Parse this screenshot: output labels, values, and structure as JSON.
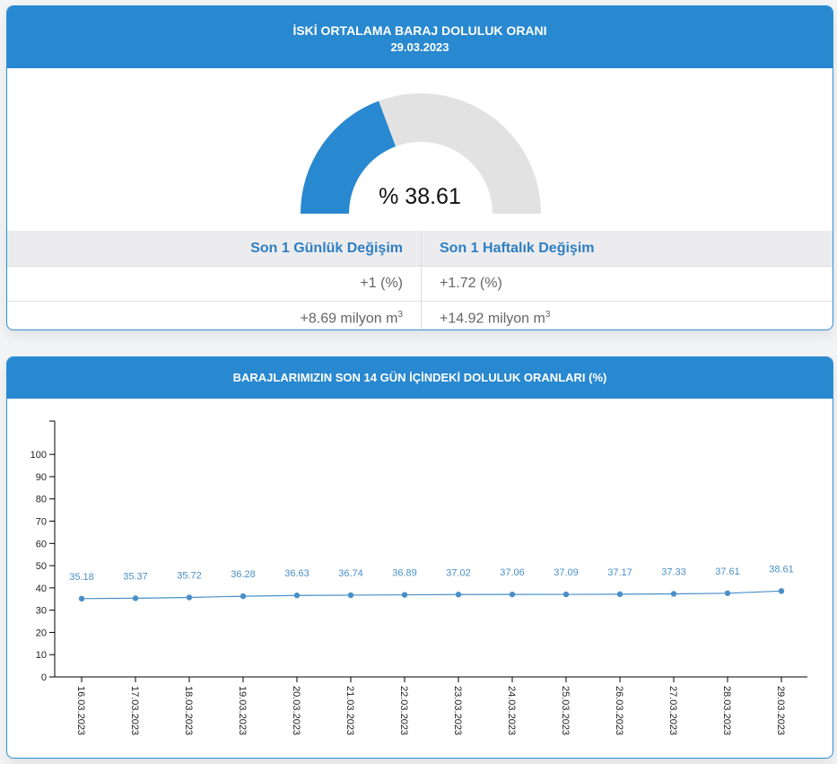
{
  "panel1": {
    "title": "İSKİ ORTALAMA BARAJ DOLULUK ORANI",
    "date": "29.03.2023",
    "gauge": {
      "value_label": "% 38.61",
      "fill_fraction": 0.3861,
      "fill_color": "#2888d0",
      "track_color": "#e2e2e2"
    },
    "table": {
      "headers": [
        "Son 1 Günlük Değişim",
        "Son 1 Haftalık Değişim"
      ],
      "rows": [
        [
          "+1 (%)",
          "+1.72 (%)"
        ],
        [
          "+8.69 milyon m",
          "+14.92 milyon m"
        ]
      ],
      "unit_superscript": "3"
    }
  },
  "panel2": {
    "title": "BARAJLARIMIZIN SON 14 GÜN İÇİNDEKİ DOLULUK ORANLARI (%)"
  },
  "chart_data": {
    "type": "line",
    "title": "BARAJLARIMIZIN SON 14 GÜN İÇİNDEKİ DOLULUK ORANLARI (%)",
    "categories": [
      "16.03.2023",
      "17.03.2023",
      "18.03.2023",
      "19.03.2023",
      "20.03.2023",
      "21.03.2023",
      "22.03.2023",
      "23.03.2023",
      "24.03.2023",
      "25.03.2023",
      "26.03.2023",
      "27.03.2023",
      "28.03.2023",
      "29.03.2023"
    ],
    "series": [
      {
        "values": [
          35.18,
          35.37,
          35.72,
          36.28,
          36.63,
          36.74,
          36.89,
          37.02,
          37.06,
          37.09,
          37.17,
          37.33,
          37.61,
          38.61
        ],
        "color": "#4a90c8"
      }
    ],
    "yticks": [
      0,
      10,
      20,
      30,
      40,
      50,
      60,
      70,
      80,
      90,
      100
    ],
    "ylim": [
      0,
      115
    ],
    "grid": false,
    "data_labels": true
  }
}
